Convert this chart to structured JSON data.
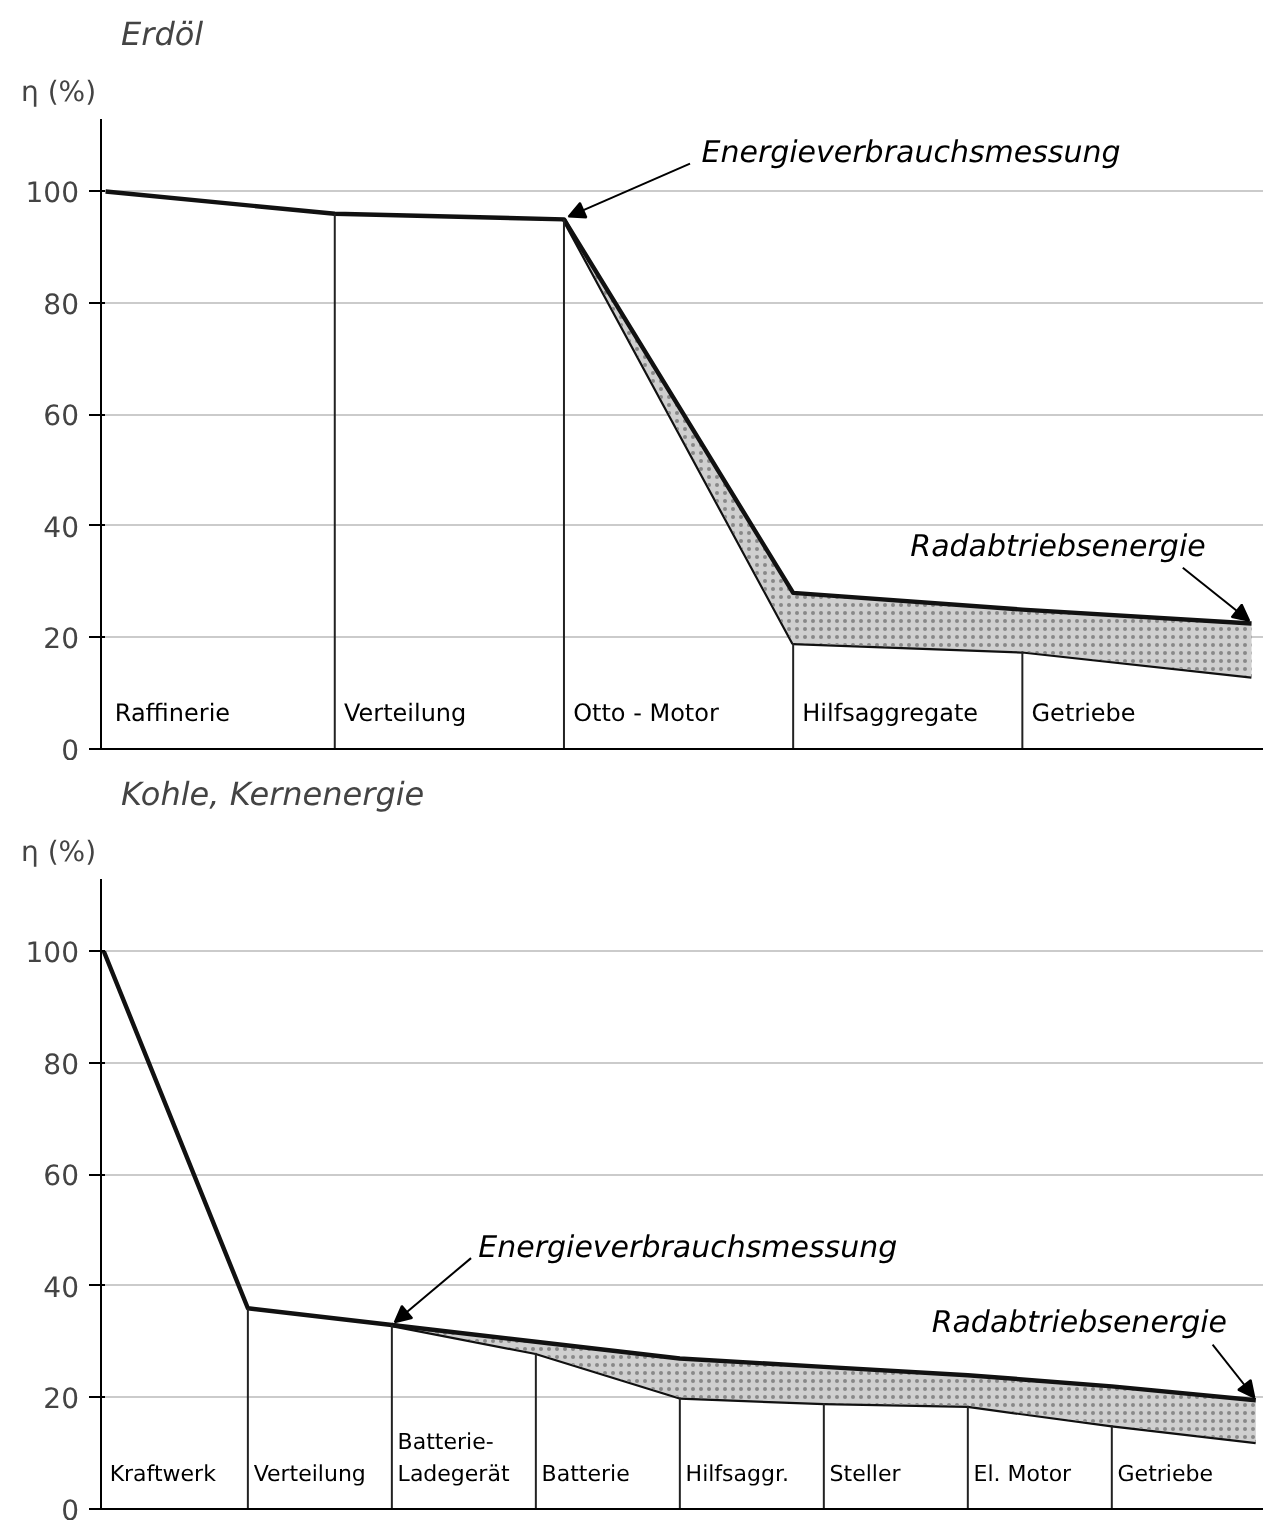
{
  "chart_data": [
    {
      "type": "line",
      "title": "Erdöl",
      "ylabel": "η (%)",
      "categories": [
        null,
        null,
        null,
        null,
        null,
        null
      ],
      "series": [
        {
          "color": "#111111",
          "values": [
            100,
            96,
            95,
            19,
            17.5,
            13
          ]
        },
        {
          "name": "Energieverbrauchsmessung",
          "color": "#111111",
          "values": [
            null,
            null,
            95,
            28,
            25,
            22.5
          ],
          "lower": [
            null,
            null,
            95,
            19,
            17.5,
            13
          ],
          "upper": [
            null,
            null,
            95,
            28,
            25,
            22.5
          ]
        }
      ],
      "annotations": [
        "Raffinerie",
        "Verteilung",
        "Otto - Motor",
        "Hilfsaggregate",
        "Getriebe",
        "Radabtriebsenergie"
      ],
      "ylim": [
        0,
        113
      ],
      "yticks": [
        0,
        20,
        40,
        60,
        80,
        100
      ],
      "grid": "y"
    },
    {
      "type": "line",
      "title": "Kohle, Kernenergie",
      "ylabel": "η (%)",
      "categories": [
        null,
        null,
        null,
        null,
        null,
        null,
        null,
        null,
        null
      ],
      "series": [
        {
          "color": "#111111",
          "values": [
            100,
            36,
            33,
            28,
            20,
            19,
            18.5,
            15,
            12
          ]
        },
        {
          "name": "Energieverbrauchsmessung",
          "color": "#111111",
          "values": [
            null,
            null,
            33,
            30,
            27,
            25.5,
            24,
            22,
            19.5
          ],
          "lower": [
            null,
            null,
            33,
            28,
            20,
            19,
            18.5,
            15,
            12
          ],
          "upper": [
            null,
            null,
            33,
            30,
            27,
            25.5,
            24,
            22,
            19.5
          ]
        }
      ],
      "annotations": [
        "Kraftwerk",
        "Verteilung",
        "Batterie-\nLadegerät",
        "Batterie",
        "Hilfsaggr.",
        "Steller",
        "El. Motor",
        "Getriebe",
        "Radabtriebsenergie"
      ],
      "ylim": [
        0,
        113
      ],
      "yticks": [
        0,
        20,
        40,
        60,
        80,
        100
      ],
      "grid": "y"
    }
  ]
}
